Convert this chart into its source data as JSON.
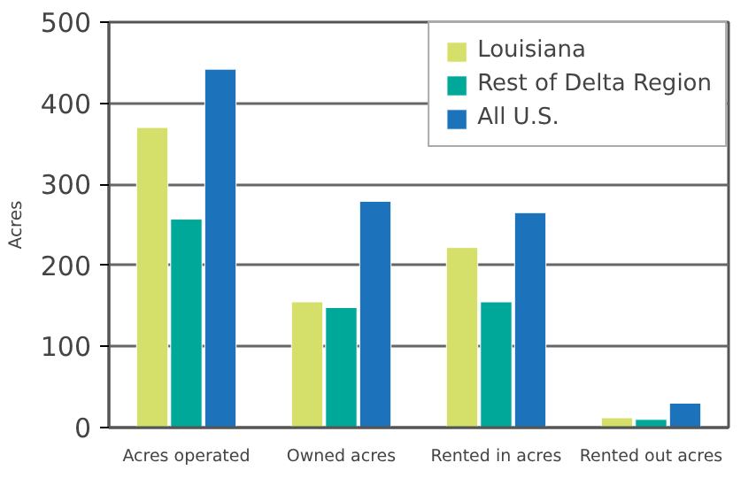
{
  "chart_data": {
    "type": "bar",
    "ylabel": "Acres",
    "categories": [
      "Acres operated",
      "Owned acres",
      "Rented in acres",
      "Rented out acres"
    ],
    "series": [
      {
        "name": "Louisiana",
        "color": "#d4e06a",
        "values": [
          370,
          155,
          222,
          12
        ]
      },
      {
        "name": "Rest of Delta Region",
        "color": "#00a89a",
        "values": [
          257,
          148,
          155,
          10
        ]
      },
      {
        "name": "All U.S.",
        "color": "#1c72bb",
        "values": [
          442,
          279,
          265,
          30
        ]
      }
    ],
    "ylim": [
      0,
      500
    ],
    "yticks": [
      0,
      100,
      200,
      300,
      400,
      500
    ],
    "grid": "y",
    "legend": "top right"
  }
}
